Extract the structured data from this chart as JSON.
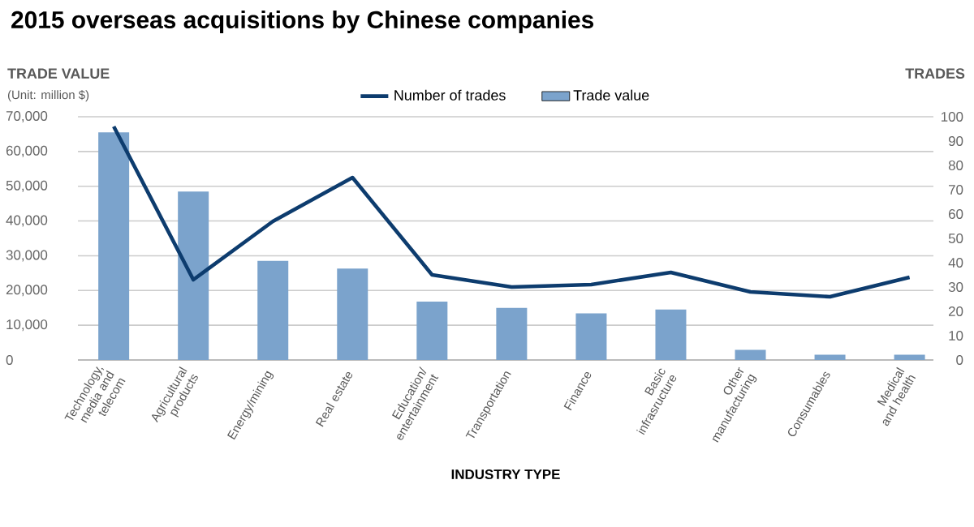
{
  "chart_data": {
    "type": "bar",
    "title": "2015 overseas acquisitions by Chinese companies",
    "xlabel": "INDUSTRY TYPE",
    "ylabel": "TRADE VALUE",
    "y2label": "TRADES",
    "annotations": [
      "(Unit: million $)"
    ],
    "categories": [
      "Technology, media and telecom",
      "Agricultural products",
      "Energy/mining",
      "Real estate",
      "Education/ entertainment",
      "Transportation",
      "Finance",
      "Basic infrasructure",
      "Other manufacturing",
      "Consumables",
      "Medical and health"
    ],
    "series": [
      {
        "name": "Number of trades",
        "type": "line",
        "axis": "y2",
        "color": "#0d3c6e",
        "values": [
          96,
          33,
          57,
          75,
          35,
          30,
          31,
          36,
          28,
          26,
          34
        ]
      },
      {
        "name": "Trade value",
        "color": "#7ba3cc",
        "values": [
          65500,
          48500,
          28500,
          26300,
          16800,
          15000,
          13400,
          14500,
          2900,
          1500,
          1500
        ]
      }
    ],
    "ylim": [
      0,
      70000
    ],
    "yticks": [
      0,
      {
        "value": 10000,
        "label": "10,000"
      },
      {
        "value": 20000,
        "label": "20,000"
      },
      {
        "value": 30000,
        "label": "30,000"
      },
      {
        "value": 40000,
        "label": "40,000"
      },
      {
        "value": 50000,
        "label": "50,000"
      },
      {
        "value": 60000,
        "label": "60,000"
      },
      {
        "value": 70000,
        "label": "70,000"
      }
    ],
    "y2lim": [
      0,
      100
    ],
    "y2ticks": [
      0,
      10,
      20,
      30,
      40,
      50,
      60,
      70,
      80,
      90,
      100
    ],
    "grid": "y",
    "legend": "top"
  }
}
